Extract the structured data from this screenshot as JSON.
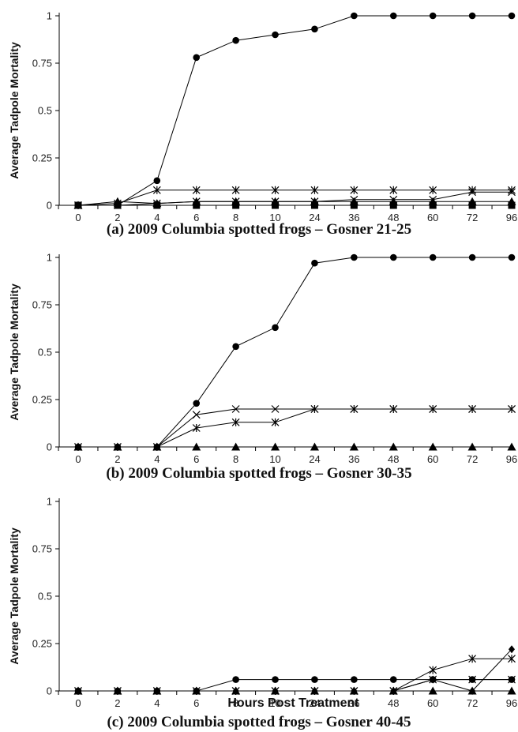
{
  "chart_data": [
    {
      "type": "line",
      "caption": "(a) 2009 Columbia spotted frogs – Gosner 21-25",
      "ylabel": "Average Tadpole Mortality",
      "xlabel": "",
      "categories": [
        "0",
        "2",
        "4",
        "6",
        "8",
        "10",
        "24",
        "36",
        "48",
        "60",
        "72",
        "96"
      ],
      "ylim": [
        0,
        1
      ],
      "yticks": [
        "0",
        "0.25",
        "0.5",
        "0.75",
        "1"
      ],
      "series": [
        {
          "marker": "circle",
          "values": [
            0,
            0,
            0.13,
            0.78,
            0.87,
            0.9,
            0.93,
            1,
            1,
            1,
            1,
            1
          ]
        },
        {
          "marker": "asterisk",
          "values": [
            0,
            0.01,
            0.08,
            0.08,
            0.08,
            0.08,
            0.08,
            0.08,
            0.08,
            0.08,
            0.08,
            0.08
          ]
        },
        {
          "marker": "cross",
          "values": [
            0,
            0,
            0.01,
            0.02,
            0.02,
            0.02,
            0.02,
            0.03,
            0.03,
            0.03,
            0.07,
            0.07
          ]
        },
        {
          "marker": "triangle",
          "values": [
            0,
            0.02,
            0.01,
            0.02,
            0.02,
            0.02,
            0.02,
            0.02,
            0.02,
            0.02,
            0.02,
            0.02
          ]
        },
        {
          "marker": "square",
          "values": [
            0,
            0,
            0,
            0,
            0,
            0,
            0,
            0,
            0,
            0,
            0,
            0
          ]
        }
      ]
    },
    {
      "type": "line",
      "caption": "(b) 2009 Columbia spotted frogs – Gosner 30-35",
      "ylabel": "Average Tadpole Mortality",
      "xlabel": "",
      "categories": [
        "0",
        "2",
        "4",
        "6",
        "8",
        "10",
        "24",
        "36",
        "48",
        "60",
        "72",
        "96"
      ],
      "ylim": [
        0,
        1
      ],
      "yticks": [
        "0",
        "0.25",
        "0.5",
        "0.75",
        "1"
      ],
      "series": [
        {
          "marker": "circle",
          "values": [
            0,
            0,
            0,
            0.23,
            0.53,
            0.63,
            0.97,
            1,
            1,
            1,
            1,
            1
          ]
        },
        {
          "marker": "cross",
          "values": [
            0,
            0,
            0,
            0.17,
            0.2,
            0.2,
            0.2,
            0.2,
            0.2,
            0.2,
            0.2,
            0.2
          ]
        },
        {
          "marker": "asterisk",
          "values": [
            0,
            0,
            0,
            0.1,
            0.13,
            0.13,
            0.2,
            0.2,
            0.2,
            0.2,
            0.2,
            0.2
          ]
        },
        {
          "marker": "triangle",
          "values": [
            0,
            0,
            0,
            0,
            0,
            0,
            0,
            0,
            0,
            0,
            0,
            0
          ]
        }
      ]
    },
    {
      "type": "line",
      "caption": "(c) 2009 Columbia spotted frogs – Gosner 40-45",
      "ylabel": "Average Tadpole Mortality",
      "xlabel": "Hours Post Treatment",
      "categories": [
        "0",
        "2",
        "4",
        "6",
        "8",
        "10",
        "24",
        "36",
        "48",
        "60",
        "72",
        "96"
      ],
      "ylim": [
        0,
        1
      ],
      "yticks": [
        "0",
        "0.25",
        "0.5",
        "0.75",
        "1"
      ],
      "series": [
        {
          "marker": "circle",
          "values": [
            0,
            0,
            0,
            0,
            0.06,
            0.06,
            0.06,
            0.06,
            0.06,
            0.06,
            0.06,
            0.06
          ]
        },
        {
          "marker": "asterisk",
          "values": [
            0,
            0,
            0,
            0,
            0,
            0,
            0,
            0,
            0,
            0.11,
            0.17,
            0.17
          ]
        },
        {
          "marker": "diamond",
          "values": [
            0,
            0,
            0,
            0,
            0,
            0,
            0,
            0,
            0,
            0.06,
            0,
            0.22
          ]
        },
        {
          "marker": "cross",
          "values": [
            0,
            0,
            0,
            0,
            0,
            0,
            0,
            0,
            0,
            0.06,
            0.06,
            0.06
          ]
        },
        {
          "marker": "triangle",
          "values": [
            0,
            0,
            0,
            0,
            0,
            0,
            0,
            0,
            0,
            0,
            0,
            0
          ]
        }
      ]
    }
  ]
}
